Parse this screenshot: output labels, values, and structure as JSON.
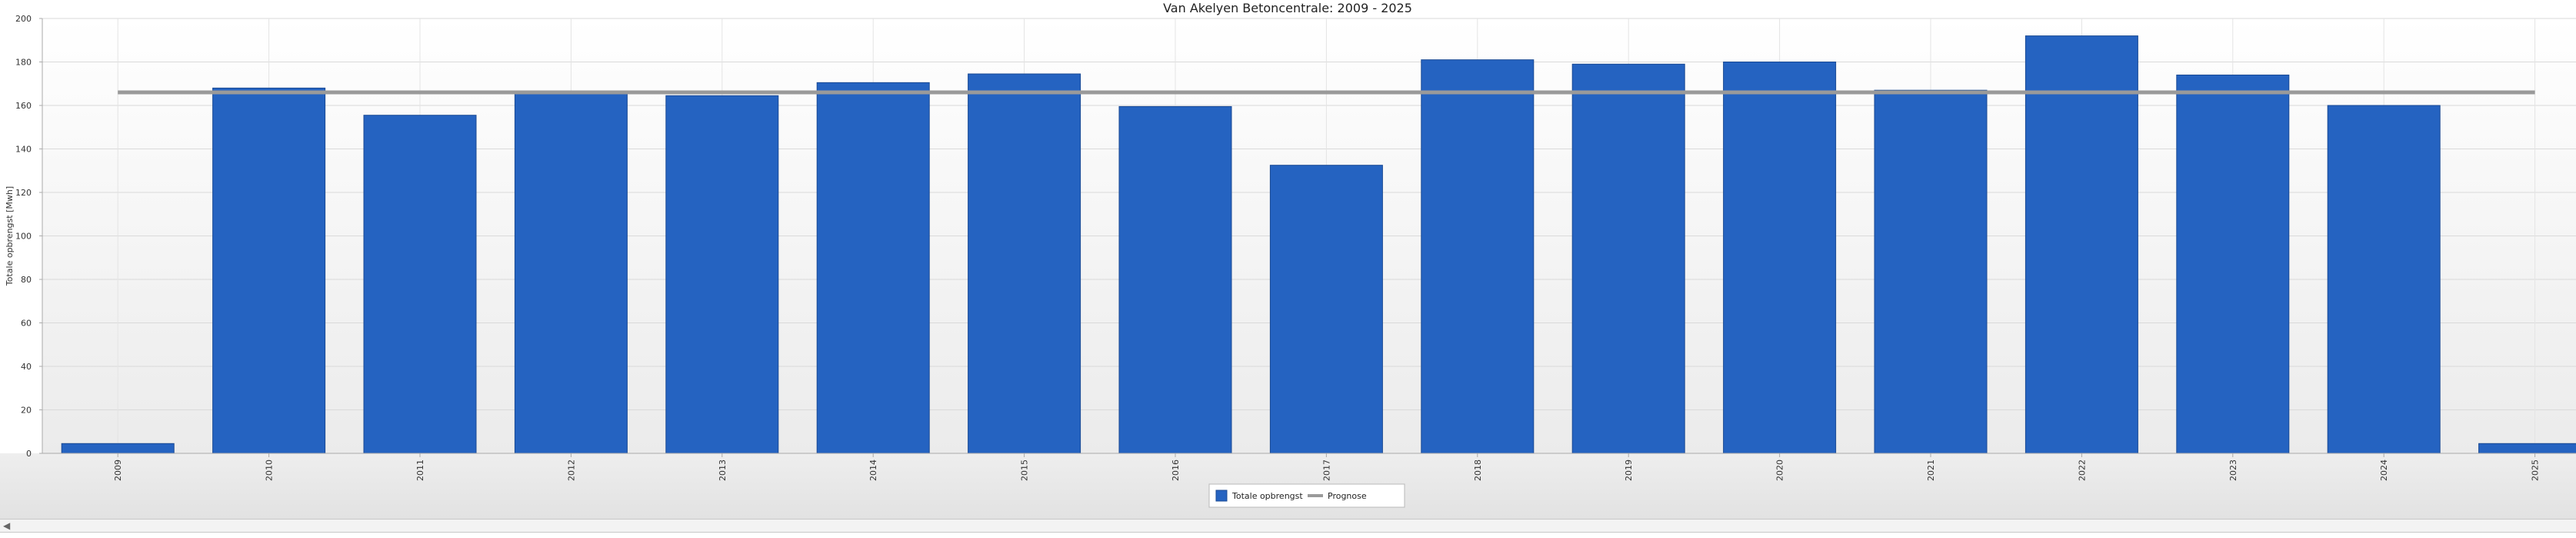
{
  "chart_data": {
    "type": "bar",
    "title": "Van Akelyen Betoncentrale: 2009 - 2025",
    "ylabel": "Totale opbrengst [Mwh]",
    "xlabel": "",
    "ylim": [
      0,
      200
    ],
    "yticks": [
      0,
      20,
      40,
      60,
      80,
      100,
      120,
      140,
      160,
      180,
      200
    ],
    "categories": [
      "2009",
      "2010",
      "2011",
      "2012",
      "2013",
      "2014",
      "2015",
      "2016",
      "2017",
      "2018",
      "2019",
      "2020",
      "2021",
      "2022",
      "2023",
      "2024",
      "2025"
    ],
    "series": [
      {
        "name": "Totale opbrengst",
        "kind": "bar",
        "color": "#2563C1",
        "values": [
          4.5,
          168,
          155.5,
          165.5,
          164.5,
          170.5,
          174.5,
          159.5,
          132.5,
          181,
          179,
          180,
          167,
          192,
          174,
          160,
          4.5
        ]
      },
      {
        "name": "Prognose",
        "kind": "line",
        "color": "#9a9a9a",
        "values": [
          166,
          166,
          166,
          166,
          166,
          166,
          166,
          166,
          166,
          166,
          166,
          166,
          166,
          166,
          166,
          166,
          166
        ]
      }
    ],
    "grid": true,
    "legend_position": "bottom-center"
  },
  "ui": {
    "scroll_left_glyph": "◀"
  }
}
